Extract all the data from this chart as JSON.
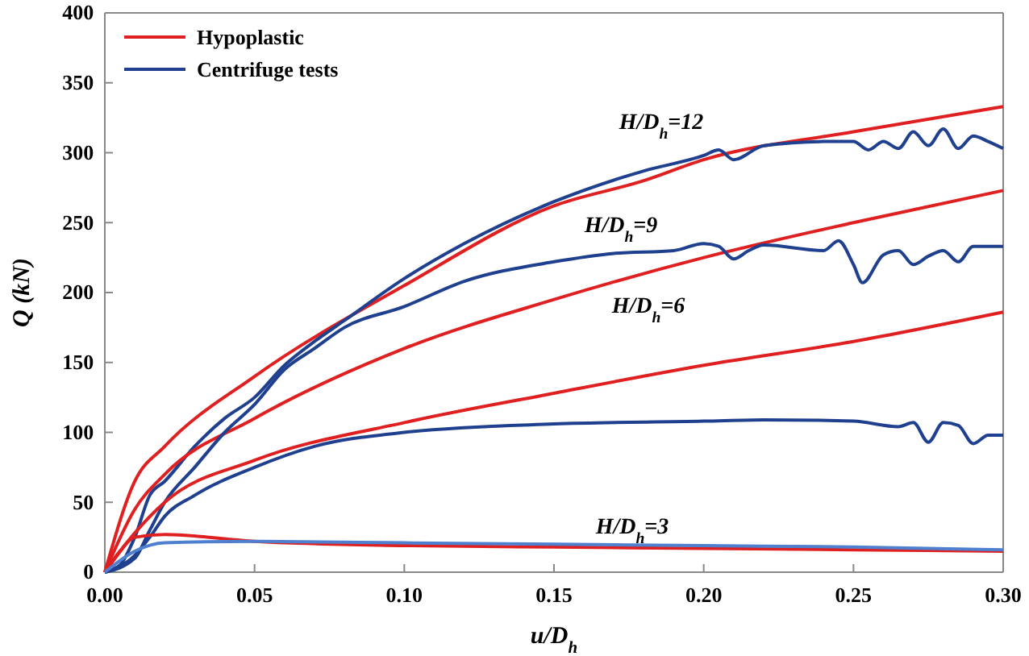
{
  "chart_data": {
    "type": "line",
    "xlabel": "u/D$_{h}$",
    "ylabel": "Q (kN)",
    "xlim": [
      0,
      0.3
    ],
    "ylim": [
      0,
      400
    ],
    "xticks": [
      {
        "value": 0,
        "label": "0.00"
      },
      {
        "value": 0.05,
        "label": "0.05"
      },
      {
        "value": 0.1,
        "label": "0.10"
      },
      {
        "value": 0.15,
        "label": "0.15"
      },
      {
        "value": 0.2,
        "label": "0.20"
      },
      {
        "value": 0.25,
        "label": "0.25"
      },
      {
        "value": 0.3,
        "label": "0.30"
      }
    ],
    "yticks": [
      0,
      50,
      100,
      150,
      200,
      250,
      300,
      350,
      400
    ],
    "legend": "top left",
    "grid": false,
    "marker": "none",
    "line_style": "solid",
    "series": [
      {
        "name": "Hypoplastic",
        "color": "#e02020",
        "x": [
          0,
          0.01,
          0.02,
          0.05,
          0.1,
          0.15,
          0.18,
          0.2,
          0.25,
          0.3
        ],
        "values": [
          0,
          65,
          90,
          140,
          205,
          262,
          280,
          295,
          315,
          333
        ]
      },
      {
        "name": "Centrifuge tests",
        "color": "#1f3f8f",
        "x": [
          0,
          0.005,
          0.01,
          0.015,
          0.02,
          0.03,
          0.04,
          0.05,
          0.06,
          0.07,
          0.08,
          0.1,
          0.12,
          0.15,
          0.18,
          0.2,
          0.205,
          0.21,
          0.22,
          0.24,
          0.25,
          0.255,
          0.26,
          0.265,
          0.27,
          0.275,
          0.28,
          0.285,
          0.29,
          0.295,
          0.3
        ],
        "values": [
          0,
          5,
          25,
          55,
          65,
          90,
          110,
          125,
          148,
          165,
          180,
          210,
          235,
          265,
          287,
          298,
          302,
          295,
          305,
          308,
          308,
          302,
          308,
          303,
          315,
          305,
          317,
          303,
          312,
          308,
          303
        ]
      },
      {
        "color": "#e02020",
        "x": [
          0,
          0.01,
          0.02,
          0.05,
          0.1,
          0.15,
          0.2,
          0.25,
          0.3
        ],
        "values": [
          0,
          45,
          70,
          110,
          160,
          195,
          225,
          250,
          273
        ]
      },
      {
        "color": "#1f3f8f",
        "x": [
          0,
          0.01,
          0.015,
          0.02,
          0.03,
          0.04,
          0.05,
          0.06,
          0.07,
          0.08,
          0.1,
          0.12,
          0.15,
          0.17,
          0.19,
          0.2,
          0.205,
          0.21,
          0.215,
          0.22,
          0.24,
          0.245,
          0.25,
          0.253,
          0.26,
          0.265,
          0.27,
          0.275,
          0.28,
          0.285,
          0.29,
          0.3
        ],
        "values": [
          0,
          10,
          30,
          50,
          75,
          100,
          120,
          145,
          160,
          175,
          190,
          208,
          222,
          228,
          230,
          235,
          233,
          224,
          230,
          234,
          230,
          237,
          220,
          207,
          227,
          230,
          220,
          226,
          230,
          222,
          233,
          233
        ]
      },
      {
        "color": "#e02020",
        "x": [
          0,
          0.01,
          0.02,
          0.05,
          0.1,
          0.15,
          0.2,
          0.25,
          0.3
        ],
        "values": [
          0,
          28,
          50,
          80,
          107,
          128,
          148,
          165,
          186
        ]
      },
      {
        "color": "#1f3f8f",
        "x": [
          0,
          0.01,
          0.015,
          0.02,
          0.03,
          0.05,
          0.07,
          0.1,
          0.15,
          0.2,
          0.22,
          0.25,
          0.265,
          0.27,
          0.275,
          0.28,
          0.285,
          0.29,
          0.295,
          0.3
        ],
        "values": [
          0,
          12,
          25,
          40,
          55,
          75,
          90,
          100,
          106,
          108,
          109,
          108,
          104,
          107,
          93,
          107,
          105,
          92,
          98,
          98
        ]
      },
      {
        "color": "#e02020",
        "x": [
          0,
          0.005,
          0.01,
          0.02,
          0.05,
          0.1,
          0.15,
          0.2,
          0.25,
          0.3
        ],
        "values": [
          0,
          15,
          25,
          27,
          22,
          19,
          18,
          17,
          16,
          15
        ]
      },
      {
        "color": "#4f7fcf",
        "x": [
          0,
          0.01,
          0.02,
          0.05,
          0.1,
          0.15,
          0.2,
          0.25,
          0.3
        ],
        "values": [
          0,
          15,
          21,
          22,
          21,
          20,
          19,
          18,
          16
        ]
      }
    ],
    "annotations": [
      "H/D$_{h}$=12",
      "H/D$_{h}$=9",
      "H/D$_{h}$=6",
      "H/D$_{h}$=3"
    ]
  }
}
